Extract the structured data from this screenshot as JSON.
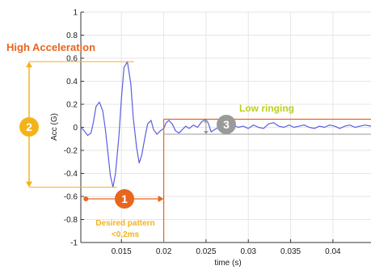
{
  "chart_data": {
    "type": "line",
    "xlabel": "time (s)",
    "ylabel": "Acc (G)",
    "xlim": [
      0.0102,
      0.0445
    ],
    "ylim": [
      -1,
      1
    ],
    "x_ticks": [
      0.015,
      0.02,
      0.025,
      0.03,
      0.035,
      0.04
    ],
    "x_tick_labels": [
      "0.015",
      "0.02",
      "0.025",
      "0.03",
      "0.035",
      "0.04"
    ],
    "y_ticks": [
      1,
      0.8,
      0.6,
      0.4,
      0.2,
      0,
      -0.2,
      -0.4,
      -0.6,
      -0.8,
      -1
    ],
    "y_tick_labels": [
      "1",
      "0.8",
      "0.6",
      "0.4",
      "0.2",
      "0",
      "-0.2",
      "-0.4",
      "-0.6",
      "-0.8",
      "-1"
    ],
    "grid": true,
    "line_color": "#5a5fe0",
    "series": [
      {
        "x": [
          0.0102,
          0.0106,
          0.011,
          0.0114,
          0.0117,
          0.012,
          0.0124,
          0.0128,
          0.0131,
          0.0134,
          0.0137,
          0.014,
          0.0143,
          0.0147,
          0.015,
          0.0153,
          0.0157,
          0.0161,
          0.0164,
          0.0168,
          0.0171,
          0.0174,
          0.0178,
          0.0181,
          0.0185,
          0.0188,
          0.0192,
          0.0196,
          0.02,
          0.0203,
          0.0206,
          0.021,
          0.0214,
          0.0218,
          0.0222,
          0.0226,
          0.023,
          0.0235,
          0.024,
          0.0245,
          0.025,
          0.0253,
          0.0256,
          0.026,
          0.0265,
          0.027,
          0.0276,
          0.0282,
          0.0288,
          0.0294,
          0.03,
          0.0306,
          0.0312,
          0.0318,
          0.0324,
          0.033,
          0.0336,
          0.0342,
          0.0348,
          0.0354,
          0.036,
          0.0366,
          0.0372,
          0.0378,
          0.0384,
          0.039,
          0.0396,
          0.0402,
          0.0408,
          0.0414,
          0.042,
          0.0426,
          0.0432,
          0.0438,
          0.0445
        ],
        "y": [
          0.0,
          -0.03,
          -0.07,
          -0.05,
          0.05,
          0.18,
          0.22,
          0.14,
          -0.02,
          -0.22,
          -0.42,
          -0.52,
          -0.4,
          -0.08,
          0.25,
          0.52,
          0.57,
          0.38,
          0.08,
          -0.18,
          -0.31,
          -0.24,
          -0.08,
          0.03,
          0.06,
          -0.02,
          -0.06,
          -0.03,
          -0.01,
          0.04,
          0.06,
          0.03,
          -0.03,
          -0.05,
          -0.02,
          0.01,
          -0.01,
          0.02,
          0.0,
          0.05,
          0.07,
          0.03,
          -0.04,
          -0.02,
          0.0,
          -0.01,
          0.0,
          0.02,
          0.0,
          0.01,
          -0.01,
          0.02,
          0.0,
          -0.01,
          0.03,
          0.04,
          0.01,
          0.0,
          0.02,
          0.0,
          0.01,
          0.02,
          0.0,
          -0.01,
          0.01,
          0.0,
          0.02,
          0.01,
          -0.01,
          0.01,
          0.02,
          0.0,
          0.01,
          0.02,
          0.01
        ]
      }
    ],
    "annotations": {
      "high_accel_label": "High Acceleration",
      "badge_1": "1",
      "badge_2": "2",
      "badge_3": "3",
      "desired_label_line1": "Desired pattern",
      "desired_label_line2": "<0,2ms",
      "low_ringing_label": "Low ringing",
      "orange_color": "#e8651c",
      "yellow_color": "#f3b31a",
      "lime_color": "#bfcf1a",
      "gray_color": "#9a9a9a"
    }
  }
}
